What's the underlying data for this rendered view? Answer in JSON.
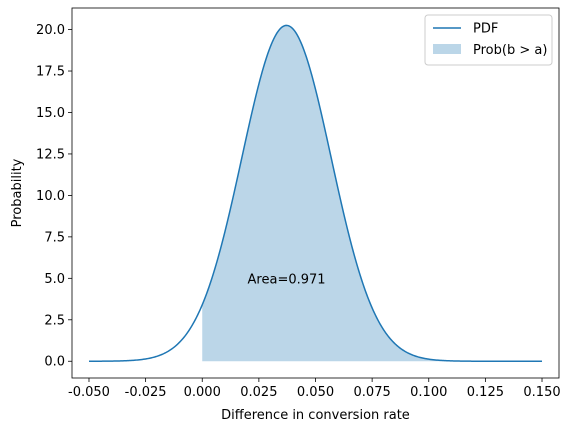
{
  "chart_data": {
    "type": "area",
    "xlabel": "Difference in conversion rate",
    "ylabel": "Probability",
    "xlim": [
      -0.0575,
      0.1575
    ],
    "ylim": [
      -1.01,
      21.3
    ],
    "x_ticks": [
      "-0.050",
      "-0.025",
      "0.000",
      "0.025",
      "0.050",
      "0.075",
      "0.100",
      "0.125",
      "0.150"
    ],
    "y_ticks": [
      "0.0",
      "2.5",
      "5.0",
      "7.5",
      "10.0",
      "12.5",
      "15.0",
      "17.5",
      "20.0"
    ],
    "grid": false,
    "legend_position": "top-right",
    "series": [
      {
        "name": "PDF",
        "kind": "line",
        "color": "#1f77b4",
        "distribution": "normal",
        "mean": 0.0372,
        "std": 0.0197,
        "x_range": [
          -0.05,
          0.15
        ],
        "peak": 20.25
      },
      {
        "name": "Prob(b > a)",
        "kind": "fill",
        "color": "#1f77b4",
        "opacity": 0.3,
        "x_from": 0.0,
        "x_to": 0.15
      }
    ],
    "annotations": [
      {
        "text": "Area=0.971",
        "x": 0.02,
        "y": 5.0
      }
    ]
  }
}
